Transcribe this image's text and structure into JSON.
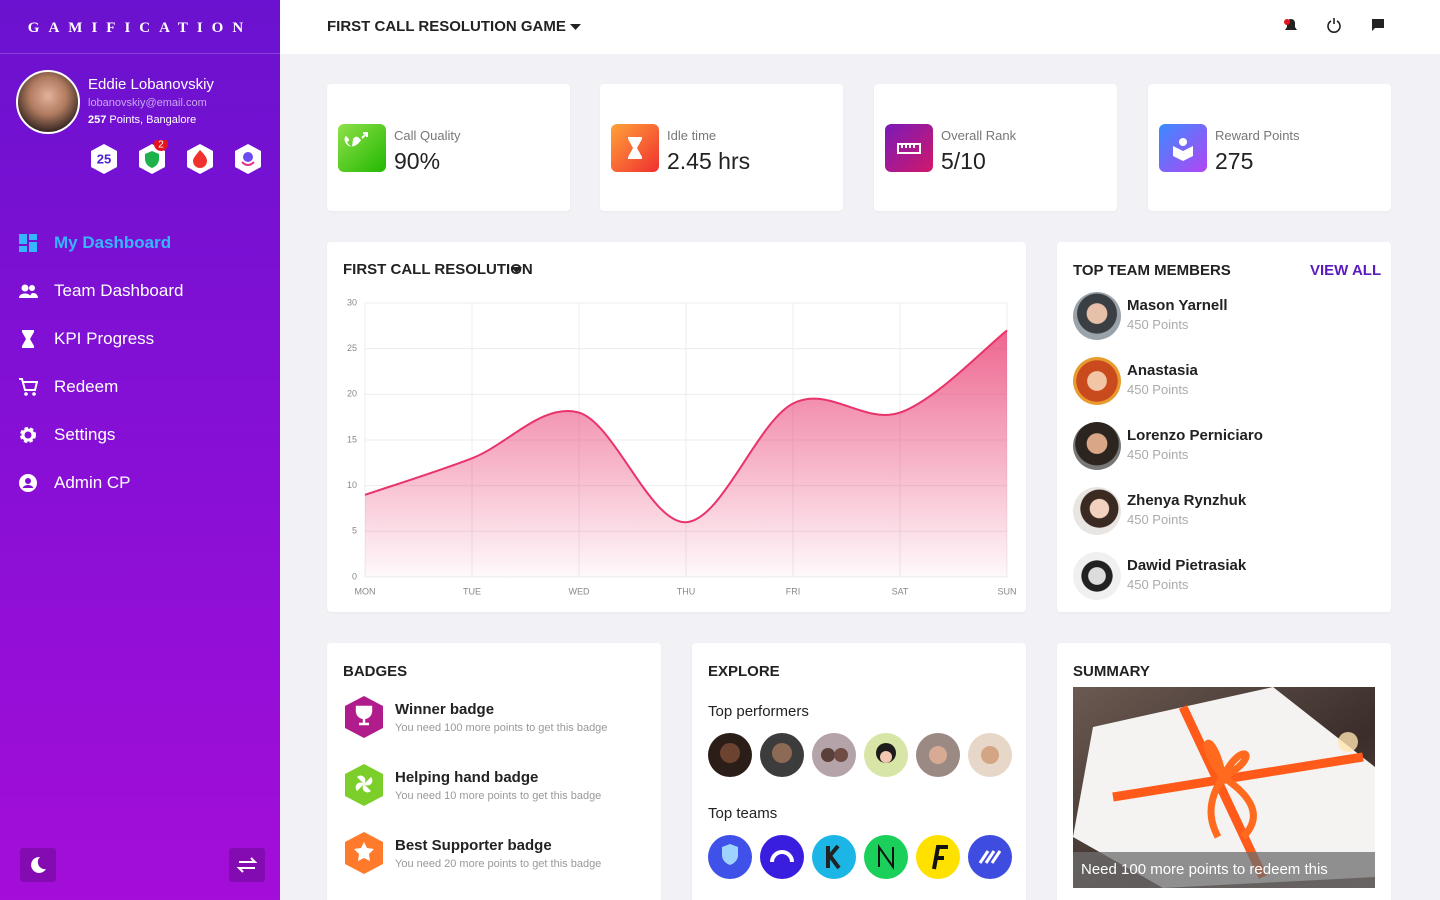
{
  "sidebar": {
    "brand": "GAMIFICATION",
    "user": {
      "name": "Eddie Lobanovskiy",
      "email": "lobanovskiy@email.com",
      "points": "257",
      "points_suffix": "Points, Bangalore",
      "level": "25",
      "notifications": "2"
    },
    "menu": [
      "My Dashboard",
      "Team Dashboard",
      "KPI Progress",
      "Redeem",
      "Settings",
      "Admin CP"
    ]
  },
  "header": {
    "title": "FIRST CALL RESOLUTION GAME"
  },
  "stats": [
    {
      "label": "Call Quality",
      "value": "90%"
    },
    {
      "label": "Idle time",
      "value": "2.45 hrs"
    },
    {
      "label": "Overall Rank",
      "value": "5/10"
    },
    {
      "label": "Reward Points",
      "value": "275"
    }
  ],
  "chart_data": {
    "type": "area",
    "title": "FIRST CALL RESOLUTION",
    "categories": [
      "MON",
      "TUE",
      "WED",
      "THU",
      "FRI",
      "SAT",
      "SUN"
    ],
    "values": [
      9,
      13,
      18,
      6,
      19,
      18,
      27
    ],
    "color": "#e8336b",
    "ylim": [
      0,
      30
    ],
    "yticks": [
      0,
      5,
      10,
      15,
      20,
      25,
      30
    ],
    "grid": true
  },
  "team": {
    "title": "TOP TEAM MEMBERS",
    "link": "VIEW ALL",
    "members": [
      {
        "name": "Mason Yarnell",
        "points": "450 Points"
      },
      {
        "name": "Anastasia",
        "points": "450 Points"
      },
      {
        "name": "Lorenzo Perniciaro",
        "points": "450 Points"
      },
      {
        "name": "Zhenya Rynzhuk",
        "points": "450 Points"
      },
      {
        "name": "Dawid Pietrasiak",
        "points": "450 Points"
      }
    ]
  },
  "badges": {
    "title": "BADGES",
    "items": [
      {
        "name": "Winner badge",
        "description": "You need 100 more points to get this badge"
      },
      {
        "name": "Helping hand badge",
        "description": "You need 10 more points to get this badge"
      },
      {
        "name": "Best Supporter badge",
        "description": "You need 20 more points to get this badge"
      }
    ]
  },
  "explore": {
    "title": "EXPLORE",
    "performers_title": "Top performers",
    "teams_title": "Top teams"
  },
  "summary": {
    "title": "SUMMARY",
    "caption": "Need 100 more points to redeem this"
  }
}
